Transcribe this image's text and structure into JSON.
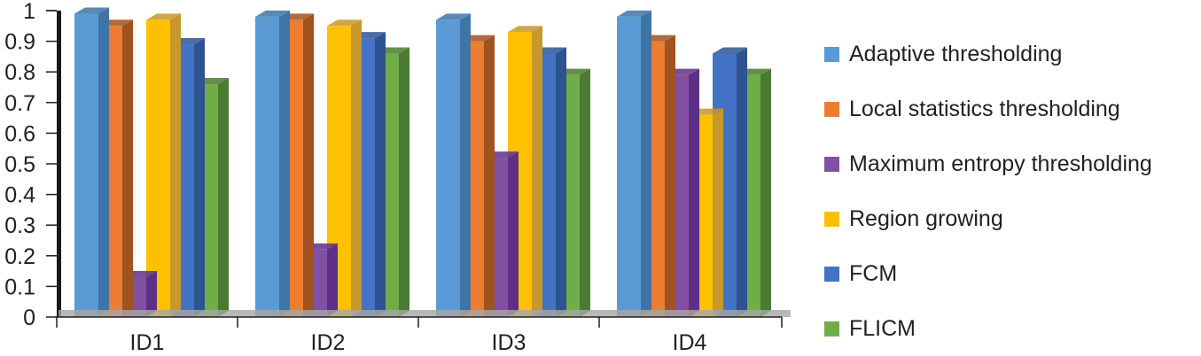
{
  "chart_data": {
    "type": "bar",
    "style": "3d-clustered-column",
    "title": "",
    "xlabel": "",
    "ylabel": "",
    "ylim": [
      0,
      1
    ],
    "yticks": [
      "0",
      "0.1",
      "0.2",
      "0.3",
      "0.4",
      "0.5",
      "0.6",
      "0.7",
      "0.8",
      "0.9",
      "1"
    ],
    "grid": false,
    "legend_position": "right",
    "categories": [
      "ID1",
      "ID2",
      "ID3",
      "ID4"
    ],
    "series": [
      {
        "name": "Adaptive thresholding",
        "color": "#5b9bd5",
        "side": "#3f74a6",
        "values": [
          0.99,
          0.98,
          0.97,
          0.98
        ]
      },
      {
        "name": "Local statistics thresholding",
        "color": "#ed7d31",
        "side": "#a0521f",
        "values": [
          0.95,
          0.97,
          0.9,
          0.9
        ]
      },
      {
        "name": "Maximum entropy thresholding",
        "color": "#8150a3",
        "side": "#5e2f87",
        "values": [
          0.13,
          0.22,
          0.52,
          0.79
        ]
      },
      {
        "name": "Region growing",
        "color": "#ffc000",
        "side": "#c7982a",
        "values": [
          0.97,
          0.95,
          0.93,
          0.66
        ]
      },
      {
        "name": "FCM",
        "color": "#4472c4",
        "side": "#2d5391",
        "values": [
          0.89,
          0.91,
          0.86,
          0.86
        ]
      },
      {
        "name": "FLICM",
        "color": "#70ad47",
        "side": "#4b7a33",
        "values": [
          0.76,
          0.86,
          0.79,
          0.79
        ]
      }
    ]
  }
}
